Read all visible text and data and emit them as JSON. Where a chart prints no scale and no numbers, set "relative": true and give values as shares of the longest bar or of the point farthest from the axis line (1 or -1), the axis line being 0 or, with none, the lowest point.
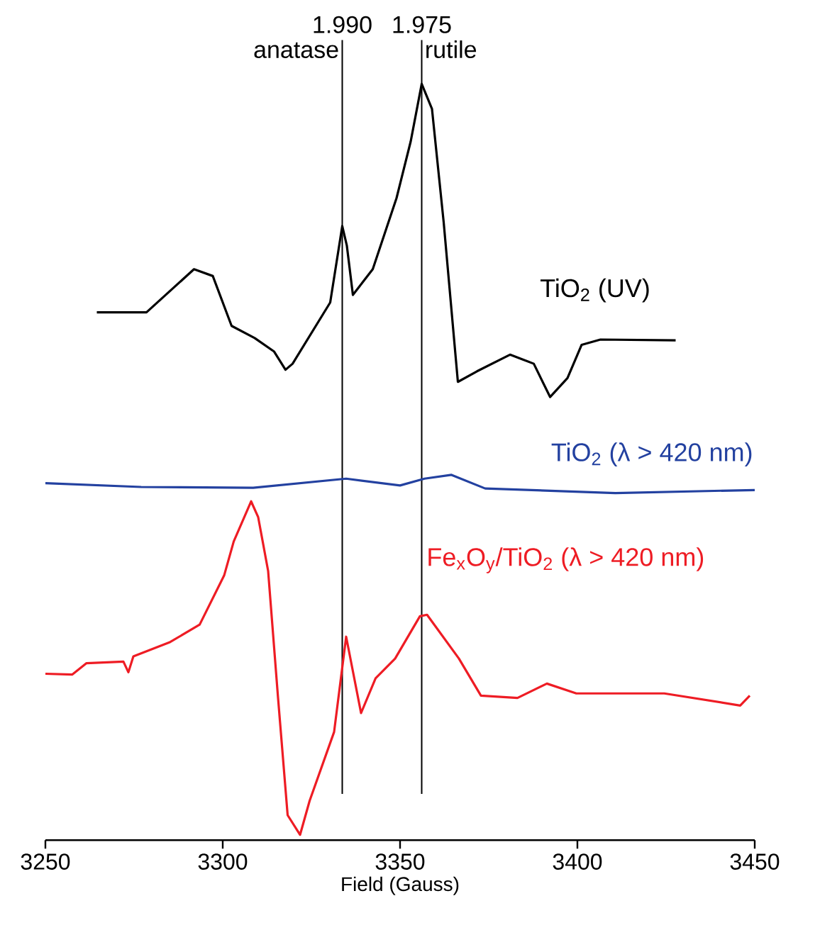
{
  "chart_data": {
    "type": "line",
    "relative": true,
    "xlabel": "Field (Gauss)",
    "xlim": [
      3250,
      3450
    ],
    "xticks": [
      3250,
      3300,
      3350,
      3400,
      3450
    ],
    "legend": false,
    "grid": false,
    "marker": "none",
    "line_style": "solid",
    "series": [
      {
        "name": "TiO$_{2}$ (UV)",
        "color": "#000000",
        "x": [
          3264.5,
          3278.5,
          3291.9,
          3297.2,
          3302.5,
          3309,
          3314.5,
          3317.7,
          3319.7,
          3330.3,
          3333.7,
          3335,
          3336.7,
          3342.3,
          3349,
          3353,
          3356.1,
          3359,
          3362.3,
          3366.3,
          3371.7,
          3381,
          3387.7,
          3392.3,
          3397.2,
          3401.2,
          3406.5,
          3427.7
        ],
        "values": [
          0.698,
          0.698,
          0.755,
          0.746,
          0.68,
          0.664,
          0.646,
          0.622,
          0.63,
          0.711,
          0.812,
          0.786,
          0.721,
          0.755,
          0.849,
          0.924,
          1.0,
          0.967,
          0.817,
          0.606,
          0.62,
          0.642,
          0.63,
          0.586,
          0.611,
          0.655,
          0.662,
          0.661
        ]
      },
      {
        "name": "TiO$_{2}$ (λ > 420 nm)",
        "color": "#2341a0",
        "x": [
          3250,
          3277,
          3308.6,
          3334.8,
          3350,
          3356.9,
          3364.5,
          3374,
          3410.7,
          3450
        ],
        "values": [
          0.472,
          0.467,
          0.466,
          0.478,
          0.469,
          0.478,
          0.483,
          0.465,
          0.459,
          0.463
        ]
      },
      {
        "name": "Fe$_{x}$O$_{y}$/TiO$_{2}$ (λ > 420 nm)",
        "color": "#ee1c24",
        "x": [
          3250,
          3257.6,
          3261.6,
          3272,
          3273.4,
          3274.8,
          3285.2,
          3293.5,
          3300.4,
          3303.1,
          3308,
          3310,
          3312.8,
          3315.6,
          3318.3,
          3321.8,
          3324.5,
          3331.4,
          3334.8,
          3339,
          3343.1,
          3348.6,
          3355.6,
          3357.6,
          3366.6,
          3372.8,
          3383.1,
          3391.4,
          3399.7,
          3424.5,
          3445.9,
          3448.6
        ],
        "values": [
          0.22,
          0.219,
          0.234,
          0.236,
          0.222,
          0.243,
          0.262,
          0.285,
          0.35,
          0.395,
          0.448,
          0.427,
          0.356,
          0.188,
          0.033,
          0.007,
          0.052,
          0.143,
          0.269,
          0.168,
          0.214,
          0.24,
          0.296,
          0.298,
          0.24,
          0.191,
          0.188,
          0.207,
          0.194,
          0.194,
          0.178,
          0.191
        ]
      }
    ],
    "ref_lines": [
      {
        "axis": "x",
        "value": 3333.7,
        "color": "#000000"
      },
      {
        "axis": "x",
        "value": 3356.1,
        "color": "#000000"
      }
    ],
    "annotations": [
      "1.990",
      "1.975",
      "anatase",
      "rutile"
    ]
  }
}
